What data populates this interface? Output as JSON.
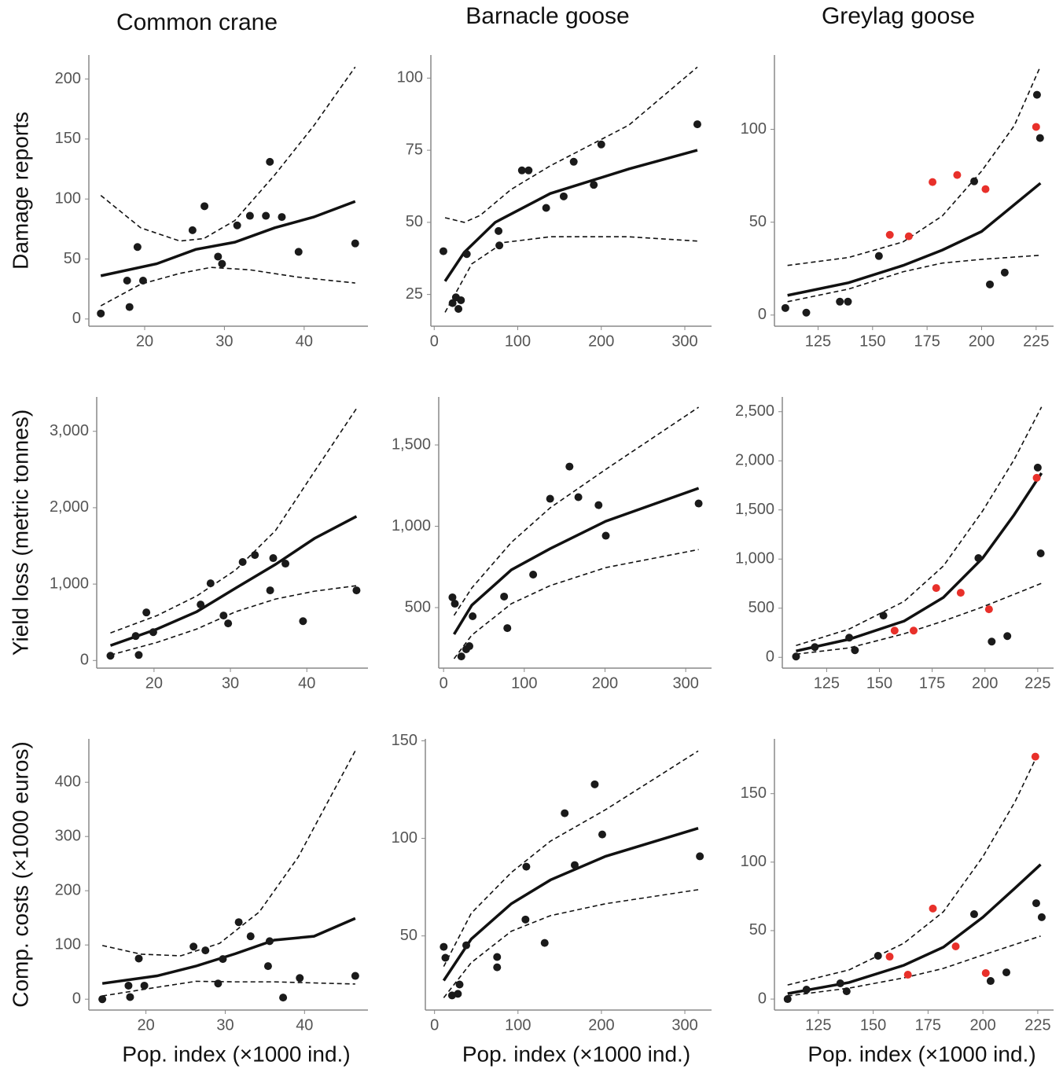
{
  "chart_data": [
    {
      "type": "scatter",
      "title": "Common crane",
      "ylabel": "Damage reports",
      "xlim": [
        13,
        48
      ],
      "ylim": [
        -6,
        220
      ],
      "xticks": [
        20,
        30,
        40
      ],
      "yticks": [
        0,
        50,
        100,
        150,
        200
      ],
      "series": [
        {
          "color": "#1a1a1a",
          "x": [
            14.5,
            17.8,
            18.1,
            19.1,
            19.8,
            26,
            27.5,
            29.2,
            29.7,
            31.6,
            33.2,
            35.2,
            35.7,
            37.2,
            39.3,
            46.4
          ],
          "y": [
            4.6,
            32,
            10,
            60,
            32,
            74,
            94,
            52,
            46,
            78,
            86,
            86,
            131,
            85,
            56,
            63
          ]
        }
      ],
      "lines": [
        {
          "style": "solid",
          "x": [
            14.5,
            21.5,
            26.4,
            31.3,
            36.3,
            41.2,
            46.4
          ],
          "y": [
            36,
            46,
            58,
            64,
            76,
            85,
            98
          ]
        },
        {
          "style": "dashed",
          "x": [
            14.5,
            19.5,
            24.4,
            27.4,
            31.3,
            36.3,
            41.2,
            46.4
          ],
          "y": [
            103,
            76,
            65,
            67,
            82,
            120,
            161,
            210
          ]
        },
        {
          "style": "dashed",
          "x": [
            14.5,
            19.5,
            24.4,
            28.3,
            33.2,
            39.1,
            46.4
          ],
          "y": [
            11,
            29,
            38,
            43,
            41,
            35,
            30
          ]
        }
      ]
    },
    {
      "type": "scatter",
      "title": "Barnacle goose",
      "xlim": [
        -4,
        332
      ],
      "ylim": [
        14,
        108
      ],
      "xticks": [
        0,
        100,
        200,
        300
      ],
      "yticks": [
        25,
        50,
        75,
        100
      ],
      "series": [
        {
          "color": "#1a1a1a",
          "x": [
            11,
            22,
            26,
            29,
            32,
            39,
            77,
            78,
            105,
            113,
            134,
            155,
            167,
            191,
            200,
            315
          ],
          "y": [
            40,
            22,
            24,
            20,
            23,
            39,
            47,
            42,
            68,
            68,
            55,
            59,
            71,
            63,
            77,
            84
          ]
        }
      ],
      "lines": [
        {
          "style": "solid",
          "x": [
            13,
            36,
            73,
            139,
            233,
            315
          ],
          "y": [
            29.6,
            39.6,
            50,
            60,
            68.5,
            75
          ]
        },
        {
          "style": "dashed",
          "x": [
            13,
            36,
            55,
            92,
            139,
            233,
            315
          ],
          "y": [
            51.6,
            50,
            52.4,
            61.4,
            69.6,
            83.7,
            103.8
          ]
        },
        {
          "style": "dashed",
          "x": [
            13,
            45,
            83,
            139,
            233,
            315
          ],
          "y": [
            18.8,
            35.6,
            43,
            45,
            45,
            43.5
          ]
        }
      ]
    },
    {
      "type": "scatter",
      "title": "Greylag goose",
      "xlim": [
        105,
        233
      ],
      "ylim": [
        -6,
        140
      ],
      "xticks": [
        125,
        150,
        175,
        200,
        225
      ],
      "yticks": [
        0,
        50,
        100
      ],
      "series": [
        {
          "color": "#1a1a1a",
          "x": [
            110,
            119.6,
            135,
            138.7,
            152.9,
            196.6,
            203.8,
            210.6,
            225.4,
            226.8
          ],
          "y": [
            3.8,
            1.3,
            7.2,
            7.2,
            31.8,
            72,
            16.5,
            22.9,
            118.6,
            95.3
          ]
        },
        {
          "color": "#e8302a",
          "x": [
            157.9,
            166.6,
            177.5,
            188.8,
            201.8,
            225
          ],
          "y": [
            43.2,
            42.4,
            71.6,
            75.4,
            67.8,
            101.3
          ]
        }
      ],
      "lines": [
        {
          "style": "solid",
          "x": [
            111,
            139,
            164,
            182,
            200,
            227
          ],
          "y": [
            10.6,
            17.4,
            26.7,
            35,
            45,
            71
          ]
        },
        {
          "style": "dashed",
          "x": [
            111,
            139,
            164,
            182,
            200,
            215,
            227
          ],
          "y": [
            26.7,
            31,
            39.4,
            53.4,
            77.5,
            102,
            134
          ]
        },
        {
          "style": "dashed",
          "x": [
            111,
            139,
            164,
            182,
            200,
            227
          ],
          "y": [
            7.2,
            14,
            23.3,
            28,
            30,
            32.2
          ]
        }
      ]
    },
    {
      "type": "scatter",
      "ylabel": "Yield loss (metric tonnes)",
      "xlim": [
        12.5,
        48
      ],
      "ylim": [
        -100,
        3450
      ],
      "xticks": [
        20,
        30,
        40
      ],
      "yticks": [
        0,
        {
          "value": 1000,
          "label": "1,000"
        },
        {
          "value": 2000,
          "label": "2,000"
        },
        {
          "value": 3000,
          "label": "3,000"
        }
      ],
      "series": [
        {
          "color": "#1a1a1a",
          "x": [
            14.3,
            17.6,
            18,
            19,
            19.9,
            26.1,
            27.4,
            29.1,
            29.7,
            31.6,
            33.2,
            35.2,
            35.6,
            37.2,
            39.5,
            46.5
          ],
          "y": [
            62,
            320,
            72,
            629,
            371,
            732,
            1010,
            588,
            485,
            1289,
            1381,
            918,
            1340,
            1268,
            515,
            918
          ]
        }
      ],
      "lines": [
        {
          "style": "solid",
          "x": [
            14.3,
            20.4,
            25.6,
            30.7,
            35.9,
            41,
            46.5
          ],
          "y": [
            196,
            412,
            639,
            948,
            1258,
            1598,
            1887
          ]
        },
        {
          "style": "dashed",
          "x": [
            14.3,
            20.4,
            25.6,
            30.7,
            35.9,
            41,
            46.5
          ],
          "y": [
            361,
            588,
            845,
            1186,
            1701,
            2474,
            3299
          ]
        },
        {
          "style": "dashed",
          "x": [
            14.3,
            20.4,
            25.6,
            30.7,
            35.9,
            41,
            46.5
          ],
          "y": [
            72,
            237,
            412,
            639,
            804,
            907,
            979
          ]
        }
      ]
    },
    {
      "type": "scatter",
      "xlim": [
        -6,
        332
      ],
      "ylim": [
        128,
        1795
      ],
      "xticks": [
        0,
        100,
        200,
        300
      ],
      "yticks": [
        500,
        {
          "value": 1000,
          "label": "1,000"
        },
        {
          "value": 1500,
          "label": "1,500"
        }
      ],
      "series": [
        {
          "color": "#1a1a1a",
          "x": [
            11,
            14,
            22,
            28,
            32,
            36,
            75,
            79,
            111,
            132,
            156,
            167,
            192,
            201,
            316
          ],
          "y": [
            563,
            524,
            200,
            244,
            263,
            447,
            568,
            374,
            703,
            1169,
            1367,
            1179,
            1130,
            942,
            1140
          ]
        }
      ],
      "lines": [
        {
          "style": "solid",
          "x": [
            13,
            35,
            84,
            132,
            201,
            316
          ],
          "y": [
            336,
            515,
            732,
            862,
            1031,
            1234
          ]
        },
        {
          "style": "dashed",
          "x": [
            13,
            35,
            84,
            132,
            201,
            316
          ],
          "y": [
            452,
            621,
            901,
            1113,
            1350,
            1732
          ]
        },
        {
          "style": "dashed",
          "x": [
            13,
            35,
            84,
            132,
            201,
            316
          ],
          "y": [
            186,
            331,
            524,
            635,
            746,
            857
          ]
        }
      ]
    },
    {
      "type": "scatter",
      "xlim": [
        104,
        232.5
      ],
      "ylim": [
        -110,
        2650
      ],
      "xticks": [
        125,
        150,
        175,
        200,
        225
      ],
      "yticks": [
        0,
        500,
        {
          "value": 1000,
          "label": "1,000"
        },
        {
          "value": 1500,
          "label": "1,500"
        },
        {
          "value": 2000,
          "label": "2,000"
        },
        {
          "value": 2500,
          "label": "2,500"
        }
      ],
      "series": [
        {
          "color": "#1a1a1a",
          "x": [
            110.5,
            119.4,
            135.7,
            138.4,
            151.9,
            196.9,
            203.2,
            210.6,
            225,
            226.4
          ],
          "y": [
            8,
            104,
            200,
            72,
            425,
            1010,
            160,
            216,
            1931,
            1058
          ]
        },
        {
          "color": "#e8302a",
          "x": [
            157.2,
            166.2,
            176.9,
            188.5,
            201.9,
            224.5
          ],
          "y": [
            272,
            272,
            705,
            657,
            489,
            1827
          ]
        }
      ],
      "lines": [
        {
          "style": "solid",
          "x": [
            110.5,
            135.7,
            161.7,
            180.3,
            198.9,
            213.8,
            226.8
          ],
          "y": [
            64,
            184,
            369,
            609,
            1010,
            1450,
            1875
          ]
        },
        {
          "style": "dashed",
          "x": [
            110.5,
            135.7,
            161.7,
            180.3,
            198.9,
            213.8,
            226.8
          ],
          "y": [
            120,
            288,
            569,
            929,
            1490,
            2011,
            2548
          ]
        },
        {
          "style": "dashed",
          "x": [
            110.5,
            135.7,
            161.7,
            180.3,
            198.9,
            226.8
          ],
          "y": [
            32,
            96,
            240,
            369,
            513,
            753
          ]
        }
      ]
    },
    {
      "type": "scatter",
      "ylabel": "Comp. costs (×1000 euros)",
      "xlabel": "Pop. index (×1000 ind.)",
      "xlim": [
        12.8,
        48
      ],
      "ylim": [
        -20,
        480
      ],
      "xticks": [
        20,
        30,
        40
      ],
      "yticks": [
        0,
        100,
        200,
        300,
        400
      ],
      "series": [
        {
          "color": "#1a1a1a",
          "x": [
            14.5,
            17.8,
            18,
            19.1,
            19.8,
            26,
            27.5,
            29.1,
            29.7,
            31.7,
            33.2,
            35.4,
            35.6,
            37.3,
            39.4,
            46.4
          ],
          "y": [
            0,
            25,
            4,
            75,
            25,
            97,
            90,
            29,
            74,
            142,
            116,
            61,
            107,
            3,
            39,
            43
          ]
        }
      ],
      "lines": [
        {
          "style": "solid",
          "x": [
            14.5,
            21.4,
            26.3,
            31.3,
            36.2,
            41.2,
            46.4
          ],
          "y": [
            29,
            43,
            61,
            84,
            109,
            116,
            149
          ]
        },
        {
          "style": "dashed",
          "x": [
            14.5,
            19.4,
            24.4,
            29.3,
            34.3,
            39.2,
            43.2,
            46.4
          ],
          "y": [
            99,
            83,
            80,
            103,
            161,
            262,
            371,
            458
          ]
        },
        {
          "style": "dashed",
          "x": [
            14.5,
            21.4,
            26.3,
            31.3,
            36.2,
            41.2,
            46.4
          ],
          "y": [
            6,
            22,
            33,
            32,
            32,
            30,
            28
          ]
        }
      ]
    },
    {
      "type": "scatter",
      "xlabel": "Pop. index (×1000 ind.)",
      "xlim": [
        -11,
        332
      ],
      "ylim": [
        12,
        151
      ],
      "xticks": [
        0,
        100,
        200,
        300
      ],
      "yticks": [
        50,
        100,
        150
      ],
      "series": [
        {
          "color": "#1a1a1a",
          "x": [
            11,
            13,
            21,
            28,
            30,
            38,
            75,
            75,
            110,
            109,
            132,
            156,
            168,
            192,
            201,
            318
          ],
          "y": [
            44.4,
            38.8,
            19.5,
            20.3,
            25.1,
            45.2,
            39.2,
            33.9,
            85.5,
            58.4,
            46.4,
            112.9,
            86.3,
            127.7,
            102,
            90.8
          ]
        }
      ],
      "lines": [
        {
          "style": "solid",
          "x": [
            11,
            44,
            92,
            139,
            205,
            316
          ],
          "y": [
            27.1,
            48.4,
            66.5,
            78.7,
            90.8,
            105.2
          ]
        },
        {
          "style": "dashed",
          "x": [
            11,
            44,
            92,
            139,
            205,
            316
          ],
          "y": [
            34.3,
            61.6,
            82.5,
            98.6,
            114.7,
            144.8
          ]
        },
        {
          "style": "dashed",
          "x": [
            11,
            44,
            92,
            139,
            205,
            316
          ],
          "y": [
            18.3,
            36.3,
            52.4,
            60.4,
            66.5,
            73.7
          ]
        }
      ]
    },
    {
      "type": "scatter",
      "xlabel": "Pop. index (×1000 ind.)",
      "xlim": [
        105,
        232.2
      ],
      "ylim": [
        -8,
        190
      ],
      "xticks": [
        125,
        150,
        175,
        200,
        225
      ],
      "yticks": [
        0,
        50,
        100,
        150
      ],
      "series": [
        {
          "color": "#1a1a1a",
          "x": [
            111,
            119.6,
            135,
            137.9,
            152.2,
            196,
            203.5,
            210.7,
            224.3,
            226.8
          ],
          "y": [
            0,
            6.9,
            11.5,
            5.7,
            31.6,
            62,
            13.2,
            19.5,
            70,
            59.8
          ]
        },
        {
          "color": "#e8302a",
          "x": [
            157.5,
            165.8,
            177.2,
            187.6,
            201.3,
            223.9
          ],
          "y": [
            31,
            17.8,
            66.1,
            38.5,
            19,
            177
          ]
        }
      ],
      "lines": [
        {
          "style": "solid",
          "x": [
            111,
            139,
            164,
            182,
            200,
            214.6,
            226.3
          ],
          "y": [
            4,
            12.1,
            24.7,
            37.9,
            59.8,
            81,
            98.3
          ]
        },
        {
          "style": "dashed",
          "x": [
            111,
            139,
            164,
            182,
            200,
            214.6,
            225
          ],
          "y": [
            10.3,
            21.3,
            40.8,
            63.8,
            104,
            144,
            178.7
          ]
        },
        {
          "style": "dashed",
          "x": [
            111,
            139,
            164,
            182,
            200,
            226.3
          ],
          "y": [
            2.3,
            8,
            15.5,
            22.4,
            32.2,
            46
          ]
        }
      ]
    }
  ]
}
